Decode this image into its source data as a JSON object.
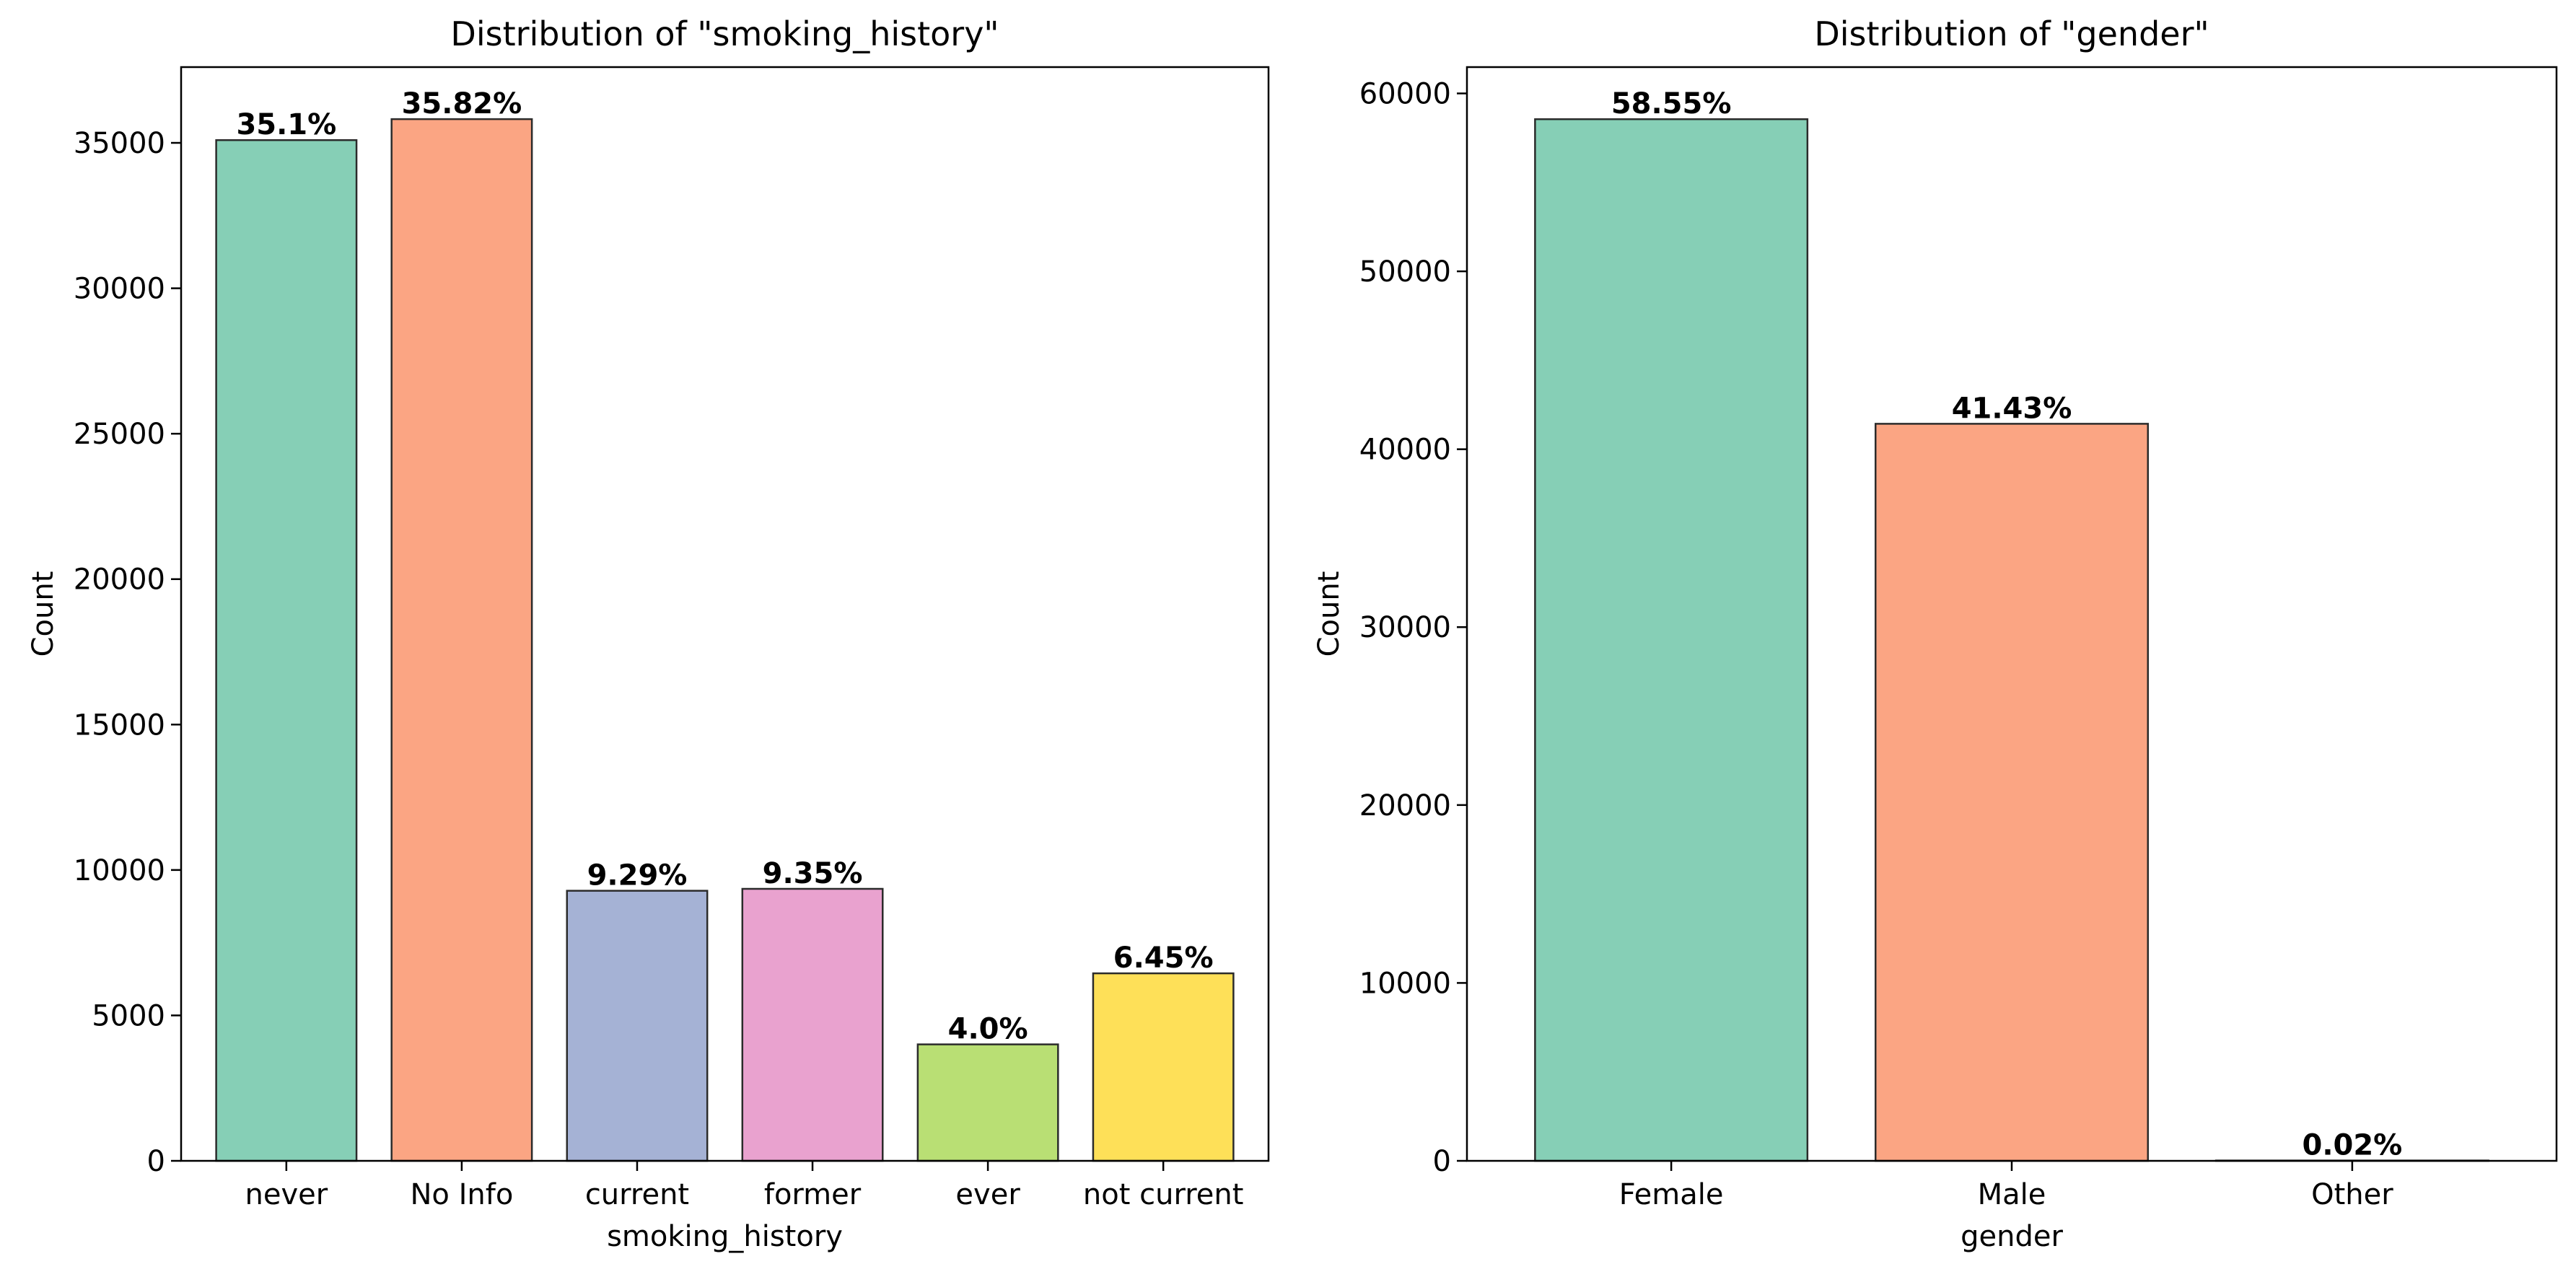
{
  "chart_data": [
    {
      "type": "bar",
      "title": "Distribution of \"smoking_history\"",
      "xlabel": "smoking_history",
      "ylabel": "Count",
      "categories": [
        "never",
        "No Info",
        "current",
        "former",
        "ever",
        "not current"
      ],
      "values": [
        35095,
        35816,
        9286,
        9352,
        4004,
        6447
      ],
      "bar_labels": [
        "35.1%",
        "35.82%",
        "9.29%",
        "9.35%",
        "4.0%",
        "6.45%"
      ],
      "colors": [
        "#86cfb6",
        "#fba583",
        "#a5b2d5",
        "#e9a2cf",
        "#b9df74",
        "#fee058"
      ],
      "ylim": [
        0,
        37605
      ],
      "yticks": [
        0,
        5000,
        10000,
        15000,
        20000,
        25000,
        30000,
        35000
      ],
      "grid": false
    },
    {
      "type": "bar",
      "title": "Distribution of \"gender\"",
      "xlabel": "gender",
      "ylabel": "Count",
      "categories": [
        "Female",
        "Male",
        "Other"
      ],
      "values": [
        58552,
        41430,
        18
      ],
      "bar_labels": [
        "58.55%",
        "41.43%",
        "0.02%"
      ],
      "colors": [
        "#86cfb6",
        "#fba583",
        "#a5b2d5"
      ],
      "ylim": [
        0,
        61480
      ],
      "yticks": [
        0,
        10000,
        20000,
        30000,
        40000,
        50000,
        60000
      ],
      "grid": false
    }
  ]
}
